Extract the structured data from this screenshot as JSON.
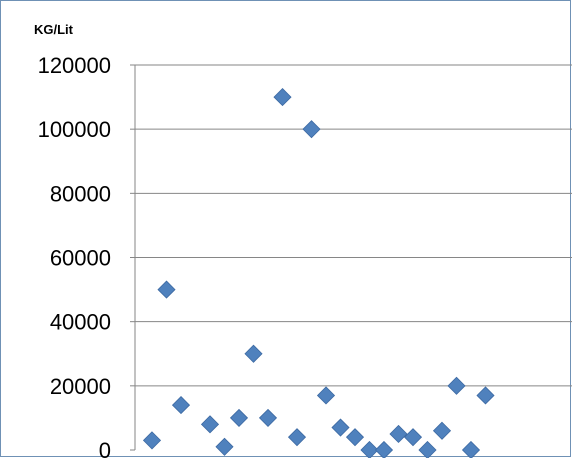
{
  "chart_data": {
    "type": "scatter",
    "title": "",
    "xlabel": "",
    "ylabel": "KG/Lit",
    "ylim": [
      0,
      120000
    ],
    "yticks": [
      "0",
      "20000",
      "40000",
      "60000",
      "80000",
      "100000",
      "120000"
    ],
    "grid": true,
    "legend": "none",
    "marker_color": "#4f81bd",
    "series": [
      {
        "x": [
          1,
          2,
          3,
          4,
          5,
          6,
          7,
          8,
          9,
          10,
          11,
          12,
          13,
          14,
          15,
          16,
          17,
          18,
          19,
          20,
          21,
          22,
          23,
          24,
          25,
          26
        ],
        "values": [
          3000,
          50000,
          14000,
          null,
          8000,
          1000,
          10000,
          30000,
          10000,
          110000,
          4000,
          100000,
          17000,
          7000,
          4000,
          0,
          0,
          5000,
          4000,
          0,
          6000,
          20000,
          0,
          17000,
          null,
          null
        ]
      }
    ]
  }
}
